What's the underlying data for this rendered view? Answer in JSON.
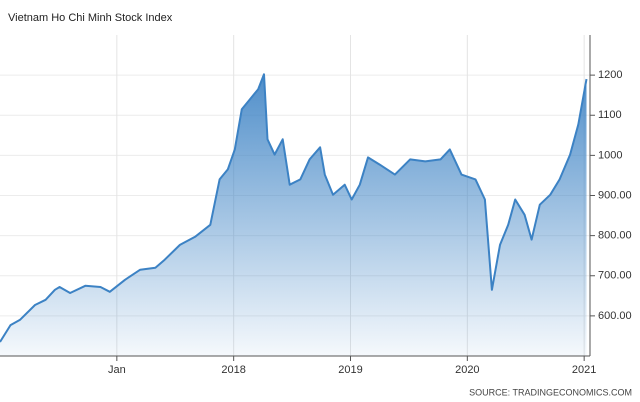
{
  "chart_data": {
    "type": "area",
    "title": "Vietnam Ho Chi Minh Stock Index",
    "source": "SOURCE: TRADINGECONOMICS.COM",
    "color": "#3c82c4",
    "grid": true,
    "x": [
      2016.0,
      2016.09,
      2016.17,
      2016.3,
      2016.39,
      2016.47,
      2016.51,
      2016.6,
      2016.73,
      2016.86,
      2016.94,
      2017.07,
      2017.2,
      2017.33,
      2017.41,
      2017.54,
      2017.67,
      2017.8,
      2017.88,
      2017.95,
      2018.01,
      2018.07,
      2018.14,
      2018.21,
      2018.26,
      2018.29,
      2018.35,
      2018.42,
      2018.48,
      2018.57,
      2018.65,
      2018.74,
      2018.78,
      2018.85,
      2018.95,
      2019.01,
      2019.08,
      2019.15,
      2019.25,
      2019.38,
      2019.51,
      2019.64,
      2019.77,
      2019.85,
      2019.95,
      2020.07,
      2020.15,
      2020.21,
      2020.28,
      2020.35,
      2020.41,
      2020.49,
      2020.55,
      2020.62,
      2020.71,
      2020.79,
      2020.88,
      2020.95,
      2021.02
    ],
    "values": [
      535,
      577,
      590,
      627,
      640,
      665,
      672,
      657,
      675,
      672,
      660,
      690,
      715,
      720,
      740,
      777,
      797,
      827,
      940,
      965,
      1015,
      1115,
      1140,
      1165,
      1202,
      1040,
      1002,
      1040,
      927,
      940,
      990,
      1020,
      952,
      902,
      927,
      890,
      927,
      995,
      977,
      952,
      990,
      985,
      990,
      1015,
      952,
      940,
      890,
      665,
      777,
      827,
      890,
      852,
      790,
      877,
      902,
      940,
      1002,
      1077,
      1190
    ],
    "xlim": [
      2016,
      2021.05
    ],
    "xticks": [
      {
        "value": 2017,
        "label": "Jan"
      },
      2018,
      2019,
      2020,
      2021
    ],
    "ylim": [
      500,
      1300
    ],
    "yticks": [
      {
        "value": 600,
        "label": "600.00"
      },
      {
        "value": 700,
        "label": "700.00"
      },
      {
        "value": 800,
        "label": "800.00"
      },
      {
        "value": 900,
        "label": "900.00"
      },
      1000,
      1100,
      1200
    ]
  }
}
